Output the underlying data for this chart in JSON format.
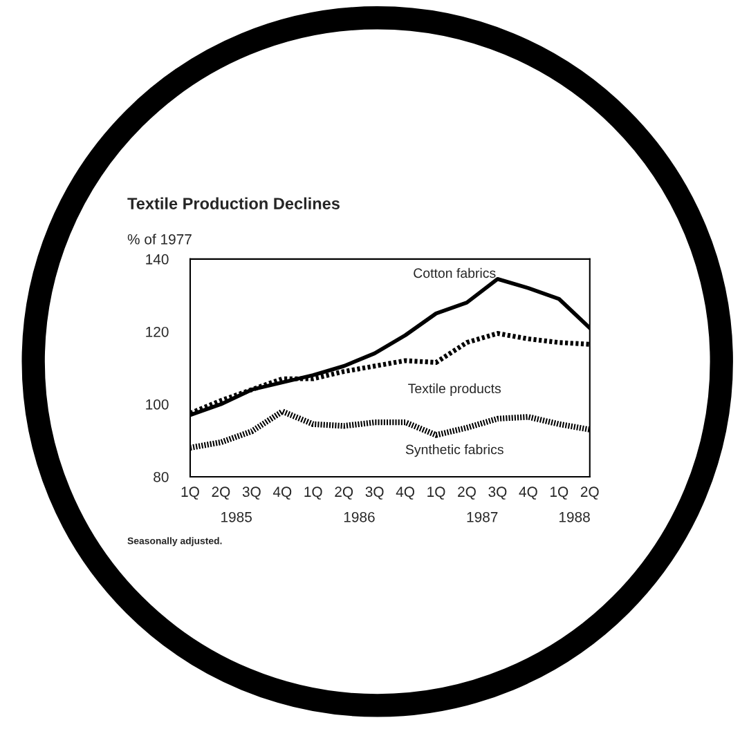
{
  "chart_data": {
    "type": "line",
    "title": "Textile Production Declines",
    "ylabel": "% of 1977",
    "categories": [
      "1Q",
      "2Q",
      "3Q",
      "4Q",
      "1Q",
      "2Q",
      "3Q",
      "4Q",
      "1Q",
      "2Q",
      "3Q",
      "4Q",
      "1Q",
      "2Q"
    ],
    "series": [
      {
        "name": "Cotton fabrics",
        "color": "#000000",
        "line_style": "solid",
        "values": [
          97,
          100,
          104,
          106,
          108,
          110.5,
          114,
          119,
          125,
          128,
          134.5,
          132,
          129,
          121
        ]
      },
      {
        "name": "Textile products",
        "color": "#000000",
        "line_style": "dotted",
        "values": [
          97.5,
          101,
          104,
          107,
          107,
          109,
          110.5,
          112,
          111.5,
          117,
          119.5,
          118,
          117,
          116.5
        ]
      },
      {
        "name": "Synthetic fabrics",
        "color": "#000000",
        "line_style": "dashed",
        "values": [
          88,
          89.5,
          92.5,
          98,
          94.5,
          94,
          95,
          95,
          91.5,
          93.5,
          96,
          96.5,
          94.5,
          93
        ]
      }
    ],
    "ylim": [
      80,
      140
    ],
    "yticks": [
      80,
      100,
      120,
      140
    ],
    "grid": false,
    "legend": false,
    "annotations": [
      "1985",
      "1986",
      "1987",
      "1988",
      "Seasonally adjusted."
    ]
  }
}
